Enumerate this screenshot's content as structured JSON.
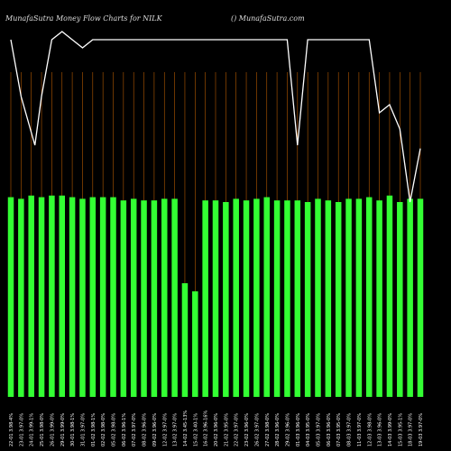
{
  "header": {
    "title": "MunafaSutra  Money Flow  Charts for NILK",
    "watermark": "() MunafaSutra.com"
  },
  "colors": {
    "background": "#000000",
    "bar": "#33ff33",
    "gridline": "#b35900",
    "line": "#ffffff"
  },
  "chart_data": {
    "type": "bar",
    "title": "MunafaSutra  Money Flow  Charts for NILK",
    "categories": [
      "22 Jan",
      "23 Jan",
      "24 Jan",
      "25 Jan",
      "26 Jan",
      "29 Jan",
      "30 Jan",
      "31 Jan",
      "01 Feb",
      "02 Feb",
      "05 Feb",
      "06 Feb",
      "07 Feb",
      "08 Feb",
      "09 Feb",
      "12 Feb",
      "13 Feb",
      "14 Feb",
      "15 Feb",
      "16 Feb",
      "20 Feb",
      "21 Feb",
      "22 Feb",
      "23 Feb",
      "26 Feb",
      "27 Feb",
      "28 Feb",
      "29 Feb",
      "01 Mar",
      "04 Mar",
      "05 Mar",
      "06 Mar",
      "07 Mar",
      "08 Mar",
      "11 Mar",
      "12 Mar",
      "13 Mar",
      "14 Mar",
      "15 Mar",
      "18 Mar",
      "19 Mar"
    ],
    "x_tick_labels": [
      "22-01 3.98-4%",
      "23-01 3.97-0%",
      "24-01 3.99-1%",
      "25-01 3.98-0%",
      "26-01 3.99-0%",
      "29-01 3.99-0%",
      "30-01 3.98-1%",
      "31-01 3.97-0%",
      "01-02 3.98-1%",
      "02-02 3.98-0%",
      "05-02 3.98-0%",
      "06-02 3.96-1%",
      "07-02 3.97-0%",
      "08-02 3.96-0%",
      "09-02 3.96-0%",
      "12-02 3.97-0%",
      "13-02 3.97-0%",
      "14-02 3.45-13%",
      "15-02 3.40-1%",
      "16-02 3.96-16%",
      "20-02 3.96-0%",
      "21-02 3.95-0%",
      "22-02 3.97-0%",
      "23-02 3.96-0%",
      "26-02 3.97-0%",
      "27-02 3.98-0%",
      "28-02 3.96-0%",
      "29-02 3.96-0%",
      "01-03 3.96-0%",
      "04-03 3.95-0%",
      "05-03 3.97-0%",
      "06-03 3.96-0%",
      "07-03 3.95-0%",
      "08-03 3.97-0%",
      "11-03 3.97-0%",
      "12-03 3.98-0%",
      "13-03 3.96-0%",
      "14-03 3.99-0%",
      "15-03 3.95-1%",
      "18-03 3.97-0%",
      "19-03 3.97-0%"
    ],
    "series": [
      {
        "values": [
          3.98,
          3.97,
          3.99,
          3.98,
          3.99,
          3.99,
          3.98,
          3.97,
          3.98,
          3.98,
          3.98,
          3.96,
          3.97,
          3.96,
          3.96,
          3.97,
          3.97,
          3.45,
          3.4,
          3.96,
          3.96,
          3.95,
          3.97,
          3.96,
          3.97,
          3.98,
          3.96,
          3.96,
          3.96,
          3.95,
          3.97,
          3.96,
          3.95,
          3.97,
          3.97,
          3.98,
          3.96,
          3.99,
          3.95,
          3.97,
          3.97
        ]
      }
    ],
    "ylim": [
      2.75,
      4.75
    ],
    "grid": true,
    "legend": "none"
  }
}
